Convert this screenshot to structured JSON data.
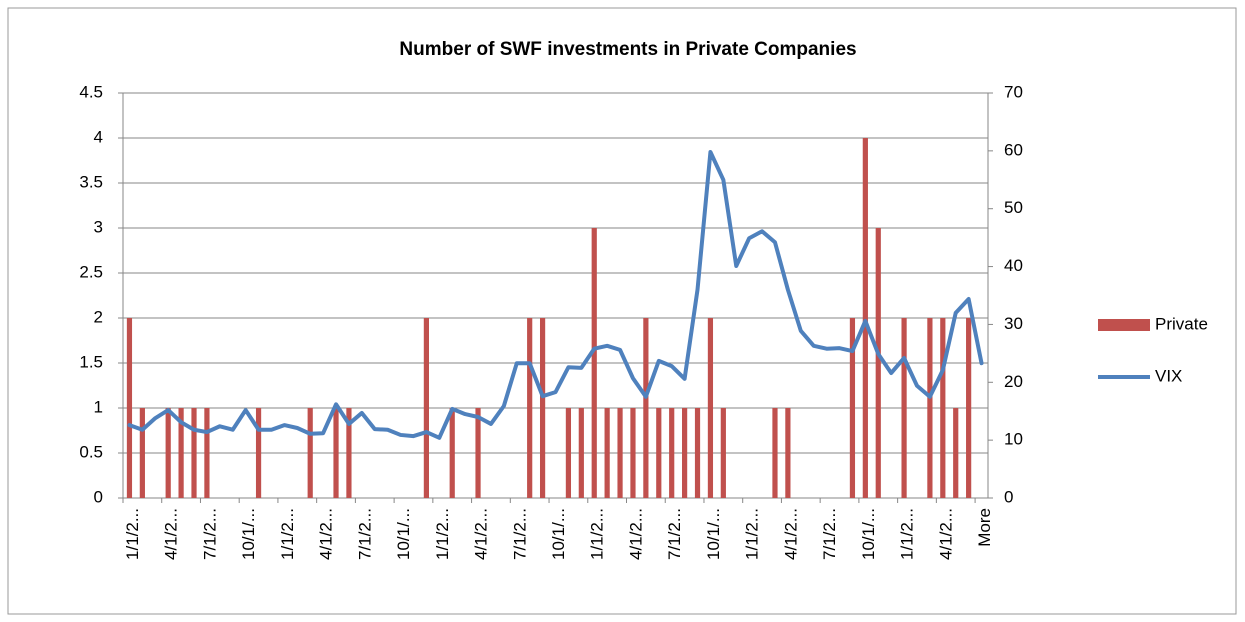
{
  "chart_data": {
    "type": "bar-line",
    "title": "Number of SWF investments in Private Companies",
    "categories": [
      "1/1/2...",
      null,
      null,
      "4/1/2...",
      null,
      null,
      "7/1/2...",
      null,
      null,
      "10/1/...",
      null,
      null,
      "1/1/2...",
      null,
      null,
      "4/1/2...",
      null,
      null,
      "7/1/2...",
      null,
      null,
      "10/1/...",
      null,
      null,
      "1/1/2...",
      null,
      null,
      "4/1/2...",
      null,
      null,
      "7/1/2...",
      null,
      null,
      "10/1/...",
      null,
      null,
      "1/1/2...",
      null,
      null,
      "4/1/2...",
      null,
      null,
      "7/1/2...",
      null,
      null,
      "10/1/...",
      null,
      null,
      "1/1/2...",
      null,
      null,
      "4/1/2...",
      null,
      null,
      "7/1/2...",
      null,
      null,
      "10/1/...",
      null,
      null,
      "1/1/2...",
      null,
      null,
      "4/1/2...",
      null,
      null,
      "More"
    ],
    "series": [
      {
        "name": "Private",
        "type": "bar",
        "color": "#c0504d",
        "values": [
          2,
          1,
          0,
          1,
          1,
          1,
          1,
          0,
          0,
          0,
          1,
          0,
          0,
          0,
          1,
          0,
          1,
          1,
          0,
          0,
          0,
          0,
          0,
          2,
          0,
          1,
          0,
          1,
          0,
          0,
          0,
          2,
          2,
          0,
          1,
          1,
          3,
          1,
          1,
          1,
          2,
          1,
          1,
          1,
          1,
          2,
          1,
          0,
          0,
          0,
          1,
          1,
          0,
          0,
          0,
          0,
          2,
          4,
          3,
          0,
          2,
          0,
          2,
          2,
          1,
          2,
          0
        ]
      },
      {
        "name": "VIX",
        "type": "line",
        "axis": "y2",
        "color": "#4f81bd",
        "values": [
          12.6,
          11.8,
          13.8,
          15.2,
          13.1,
          11.8,
          11.4,
          12.4,
          11.8,
          15.2,
          11.8,
          11.8,
          12.6,
          12.1,
          11.1,
          11.2,
          16.2,
          12.8,
          14.7,
          11.9,
          11.8,
          10.9,
          10.7,
          11.4,
          10.4,
          15.4,
          14.5,
          14.0,
          12.8,
          15.9,
          23.3,
          23.3,
          17.6,
          18.3,
          22.6,
          22.5,
          25.8,
          26.3,
          25.6,
          20.7,
          17.5,
          23.7,
          22.8,
          20.6,
          36,
          59.8,
          55,
          40.1,
          44.9,
          46.1,
          44.2,
          36,
          28.9,
          26.3,
          25.8,
          25.9,
          25.4,
          30.6,
          24.9,
          21.6,
          24.2,
          19.4,
          17.5,
          22.1,
          32,
          34.4,
          23.3
        ]
      }
    ],
    "ylim": [
      0,
      4.5
    ],
    "yticks": [
      0,
      0.5,
      1,
      1.5,
      2,
      2.5,
      3,
      3.5,
      4,
      4.5
    ],
    "y2lim": [
      0,
      70
    ],
    "y2ticks": [
      0,
      10,
      20,
      30,
      40,
      50,
      60,
      70
    ],
    "grid": true,
    "legend": "right"
  }
}
